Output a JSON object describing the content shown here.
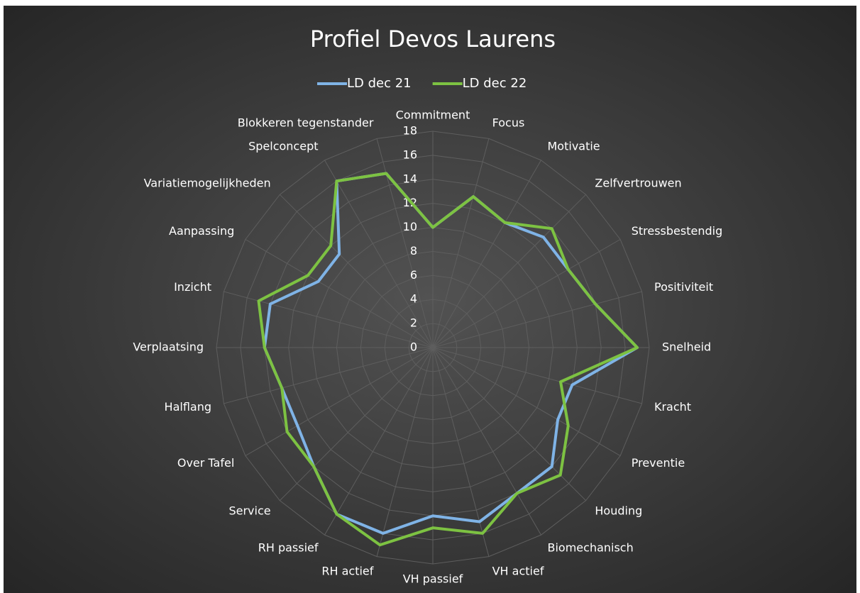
{
  "chart_data": {
    "type": "radar",
    "title": "Profiel Devos Laurens",
    "categories": [
      "Commitment",
      "Focus",
      "Motivatie",
      "Zelfvertrouwen",
      "Stressbestendig",
      "Positiviteit",
      "Snelheid",
      "Kracht",
      "Preventie",
      "Houding",
      "Biomechanisch",
      "VH actief",
      "VH passief",
      "RH actief",
      "RH passief",
      "Service",
      "Over Tafel",
      "Halflang",
      "Verplaatsing",
      "Inzicht",
      "Aanpassing",
      "Variatiemogelijkheden",
      "Spelconcept",
      "Blokkeren tegenstander"
    ],
    "series": [
      {
        "name": "LD dec 21",
        "color": "#7fb3e6",
        "values": [
          10,
          13,
          12,
          13,
          13,
          14,
          17,
          12,
          12,
          14,
          14,
          15,
          14,
          16,
          16,
          14,
          13,
          13,
          14,
          14,
          11,
          11,
          16,
          15
        ]
      },
      {
        "name": "LD dec 22",
        "color": "#7dc242",
        "values": [
          10,
          13,
          12,
          14,
          13,
          14,
          17,
          11,
          13,
          15,
          14,
          16,
          15,
          17,
          16,
          14,
          14,
          13,
          14,
          15,
          12,
          12,
          16,
          15
        ]
      }
    ],
    "ylim": [
      0,
      18
    ],
    "yticks": [
      0,
      2,
      4,
      6,
      8,
      10,
      12,
      14,
      16,
      18
    ],
    "grid": true,
    "legend": "top"
  }
}
